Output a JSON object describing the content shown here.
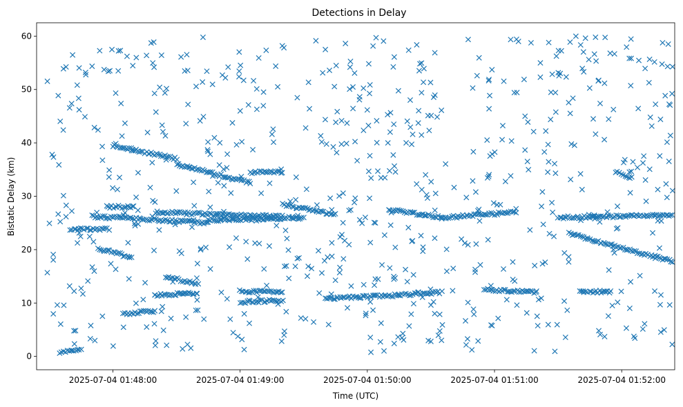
{
  "chart_data": {
    "type": "scatter",
    "title": "Detections in Delay",
    "xlabel": "Time (UTC)",
    "ylabel": "Bistatic Delay (km)",
    "xlim": [
      "2025-07-04 01:47:24",
      "2025-07-04 01:52:25"
    ],
    "ylim": [
      -2.5,
      62.5
    ],
    "xticks": [
      {
        "value": "2025-07-04 01:48:00",
        "label": "2025-07-04 01:48:00"
      },
      {
        "value": "2025-07-04 01:49:00",
        "label": "2025-07-04 01:49:00"
      },
      {
        "value": "2025-07-04 01:50:00",
        "label": "2025-07-04 01:50:00"
      },
      {
        "value": "2025-07-04 01:51:00",
        "label": "2025-07-04 01:51:00"
      },
      {
        "value": "2025-07-04 01:52:00",
        "label": "2025-07-04 01:52:00"
      }
    ],
    "yticks": [
      0,
      10,
      20,
      30,
      40,
      50,
      60
    ],
    "grid": false,
    "marker": "x",
    "color": "#1f77b4",
    "time_range": [
      "2025-07-04 01:47:29",
      "2025-07-04 01:52:24"
    ],
    "tracks": [
      {
        "t": [
          "2025-07-04 01:47:53",
          "2025-07-04 01:48:09"
        ],
        "y": [
          20.3,
          18.5
        ]
      },
      {
        "t": [
          "2025-07-04 01:47:57",
          "2025-07-04 01:48:10"
        ],
        "y": [
          28.0,
          28.0
        ]
      },
      {
        "t": [
          "2025-07-04 01:48:00",
          "2025-07-04 01:48:30"
        ],
        "y": [
          39.5,
          37.0
        ]
      },
      {
        "t": [
          "2025-07-04 01:48:30",
          "2025-07-04 01:49:05"
        ],
        "y": [
          36.0,
          32.5
        ]
      },
      {
        "t": [
          "2025-07-04 01:47:50",
          "2025-07-04 01:48:45"
        ],
        "y": [
          26.2,
          25.0
        ]
      },
      {
        "t": [
          "2025-07-04 01:48:45",
          "2025-07-04 01:49:30"
        ],
        "y": [
          25.5,
          26.0
        ]
      },
      {
        "t": [
          "2025-07-04 01:48:20",
          "2025-07-04 01:49:20"
        ],
        "y": [
          27.0,
          26.2
        ]
      },
      {
        "t": [
          "2025-07-04 01:47:40",
          "2025-07-04 01:47:58"
        ],
        "y": [
          23.8,
          23.8
        ]
      },
      {
        "t": [
          "2025-07-04 01:47:35",
          "2025-07-04 01:47:45"
        ],
        "y": [
          0.8,
          1.5
        ]
      },
      {
        "t": [
          "2025-07-04 01:48:05",
          "2025-07-04 01:48:20"
        ],
        "y": [
          8.0,
          8.5
        ]
      },
      {
        "t": [
          "2025-07-04 01:48:20",
          "2025-07-04 01:48:40"
        ],
        "y": [
          11.5,
          11.8
        ]
      },
      {
        "t": [
          "2025-07-04 01:48:25",
          "2025-07-04 01:48:40"
        ],
        "y": [
          15.0,
          13.5
        ]
      },
      {
        "t": [
          "2025-07-04 01:49:00",
          "2025-07-04 01:49:20"
        ],
        "y": [
          12.2,
          12.0
        ]
      },
      {
        "t": [
          "2025-07-04 01:49:00",
          "2025-07-04 01:49:20"
        ],
        "y": [
          10.2,
          10.5
        ]
      },
      {
        "t": [
          "2025-07-04 01:49:05",
          "2025-07-04 01:49:20"
        ],
        "y": [
          34.5,
          34.5
        ]
      },
      {
        "t": [
          "2025-07-04 01:49:20",
          "2025-07-04 01:49:45"
        ],
        "y": [
          28.5,
          26.5
        ]
      },
      {
        "t": [
          "2025-07-04 01:49:40",
          "2025-07-04 01:50:15"
        ],
        "y": [
          10.8,
          11.5
        ]
      },
      {
        "t": [
          "2025-07-04 01:50:10",
          "2025-07-04 01:50:35"
        ],
        "y": [
          27.5,
          26.0
        ]
      },
      {
        "t": [
          "2025-07-04 01:50:15",
          "2025-07-04 01:50:35"
        ],
        "y": [
          11.5,
          12.0
        ]
      },
      {
        "t": [
          "2025-07-04 01:50:35",
          "2025-07-04 01:51:10"
        ],
        "y": [
          26.0,
          27.0
        ]
      },
      {
        "t": [
          "2025-07-04 01:50:55",
          "2025-07-04 01:51:20"
        ],
        "y": [
          12.5,
          12.0
        ]
      },
      {
        "t": [
          "2025-07-04 01:51:30",
          "2025-07-04 01:52:24"
        ],
        "y": [
          26.0,
          26.5
        ]
      },
      {
        "t": [
          "2025-07-04 01:51:35",
          "2025-07-04 01:52:24"
        ],
        "y": [
          23.0,
          17.8
        ]
      },
      {
        "t": [
          "2025-07-04 01:51:40",
          "2025-07-04 01:51:55"
        ],
        "y": [
          12.3,
          12.0
        ]
      },
      {
        "t": [
          "2025-07-04 01:51:57",
          "2025-07-04 01:52:05"
        ],
        "y": [
          34.5,
          33.5
        ]
      }
    ],
    "scatter_points": 700,
    "y_scatter_range": [
      0.5,
      60
    ]
  }
}
